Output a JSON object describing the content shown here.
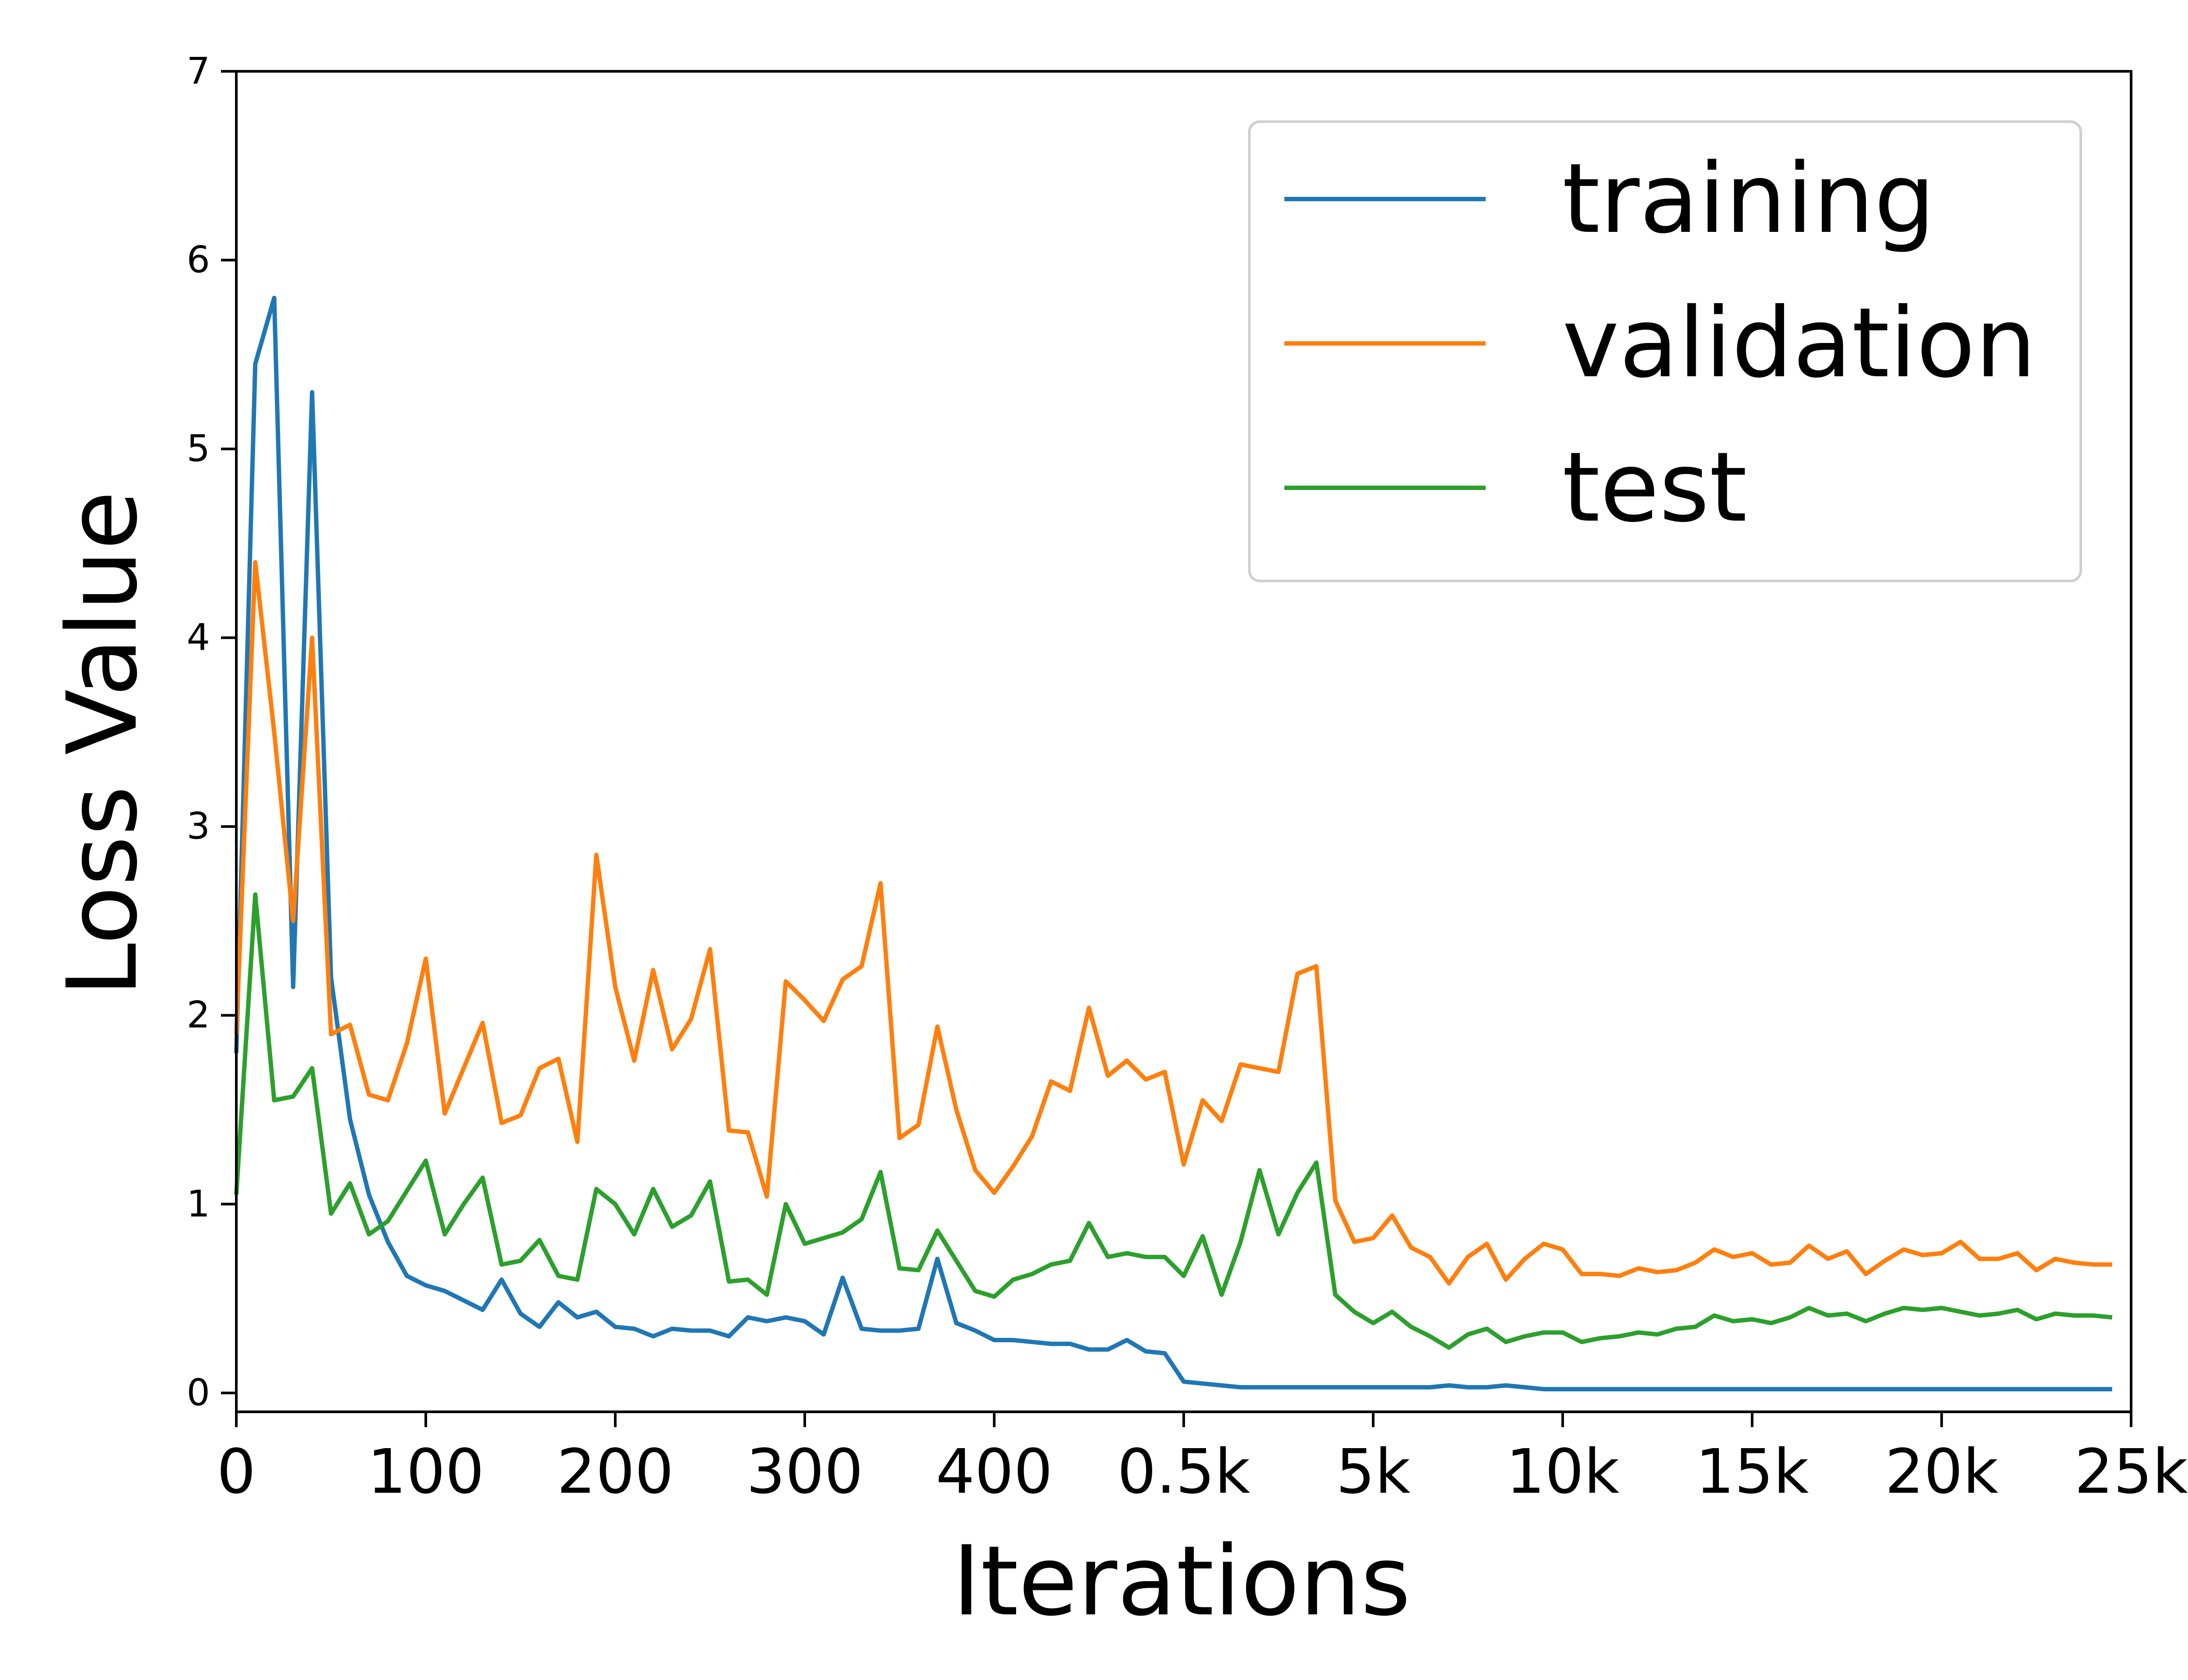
{
  "chart_data": {
    "type": "line",
    "xlabel": "Iterations",
    "ylabel": "Loss Value",
    "ylim": [
      -0.1,
      7
    ],
    "y_ticks": [
      "0",
      "1",
      "2",
      "3",
      "4",
      "5",
      "6",
      "7"
    ],
    "x_positions": [
      0,
      1,
      2,
      3,
      4,
      5,
      6,
      7,
      8,
      9,
      10,
      11,
      12,
      13,
      14,
      15,
      16,
      17,
      18,
      19,
      20,
      21,
      22,
      23,
      24,
      25,
      26,
      27,
      28,
      29,
      30,
      31,
      32,
      33,
      34,
      35,
      36,
      37,
      38,
      39,
      40,
      41,
      42,
      43,
      44,
      45,
      46,
      47,
      48,
      49,
      50,
      51,
      52,
      53,
      54,
      55,
      56,
      57,
      58,
      59,
      60,
      61,
      62,
      63,
      64,
      65,
      66,
      67,
      68,
      69,
      70,
      71,
      72,
      73,
      74,
      75,
      76,
      77,
      78,
      79,
      80,
      81,
      82,
      83,
      84,
      85,
      86,
      87,
      88,
      89,
      90,
      91,
      92,
      93,
      94,
      95,
      96,
      97,
      98,
      99
    ],
    "x_ticks": [
      {
        "pos": 0,
        "label": "0"
      },
      {
        "pos": 10,
        "label": "100"
      },
      {
        "pos": 20,
        "label": "200"
      },
      {
        "pos": 30,
        "label": "300"
      },
      {
        "pos": 40,
        "label": "400"
      },
      {
        "pos": 50,
        "label": "0.5k"
      },
      {
        "pos": 60,
        "label": "5k"
      },
      {
        "pos": 70,
        "label": "10k"
      },
      {
        "pos": 80,
        "label": "15k"
      },
      {
        "pos": 90,
        "label": "20k"
      },
      {
        "pos": 100,
        "label": "25k"
      }
    ],
    "legend_position": "top-right",
    "series": [
      {
        "name": "training",
        "color": "#1f77b4",
        "values": [
          1.8,
          5.45,
          5.8,
          2.15,
          5.3,
          2.2,
          1.45,
          1.05,
          0.8,
          0.62,
          0.57,
          0.54,
          0.49,
          0.44,
          0.6,
          0.42,
          0.35,
          0.48,
          0.4,
          0.43,
          0.35,
          0.34,
          0.3,
          0.34,
          0.33,
          0.33,
          0.3,
          0.4,
          0.38,
          0.4,
          0.38,
          0.31,
          0.61,
          0.34,
          0.33,
          0.33,
          0.34,
          0.71,
          0.37,
          0.33,
          0.28,
          0.28,
          0.27,
          0.26,
          0.26,
          0.23,
          0.23,
          0.28,
          0.22,
          0.21,
          0.06,
          0.05,
          0.04,
          0.03,
          0.03,
          0.03,
          0.03,
          0.03,
          0.03,
          0.03,
          0.03,
          0.03,
          0.03,
          0.03,
          0.04,
          0.03,
          0.03,
          0.04,
          0.03,
          0.02,
          0.02,
          0.02,
          0.02,
          0.02,
          0.02,
          0.02,
          0.02,
          0.02,
          0.02,
          0.02,
          0.02,
          0.02,
          0.02,
          0.02,
          0.02,
          0.02,
          0.02,
          0.02,
          0.02,
          0.02,
          0.02,
          0.02,
          0.02,
          0.02,
          0.02,
          0.02,
          0.02,
          0.02,
          0.02,
          0.02
        ]
      },
      {
        "name": "validation",
        "color": "#ff7f0e",
        "values": [
          1.9,
          4.4,
          3.5,
          2.5,
          4.0,
          1.9,
          1.95,
          1.58,
          1.55,
          1.85,
          2.3,
          1.48,
          1.72,
          1.96,
          1.43,
          1.47,
          1.72,
          1.77,
          1.33,
          2.85,
          2.15,
          1.76,
          2.24,
          1.82,
          1.98,
          2.35,
          1.39,
          1.38,
          1.04,
          2.18,
          2.08,
          1.97,
          2.19,
          2.26,
          2.7,
          1.35,
          1.42,
          1.94,
          1.5,
          1.18,
          1.06,
          1.2,
          1.36,
          1.65,
          1.6,
          2.04,
          1.68,
          1.76,
          1.66,
          1.7,
          1.21,
          1.55,
          1.44,
          1.74,
          1.72,
          1.7,
          2.22,
          2.26,
          1.02,
          0.8,
          0.82,
          0.94,
          0.77,
          0.72,
          0.58,
          0.72,
          0.79,
          0.6,
          0.71,
          0.79,
          0.76,
          0.63,
          0.63,
          0.62,
          0.66,
          0.64,
          0.65,
          0.69,
          0.76,
          0.72,
          0.74,
          0.68,
          0.69,
          0.78,
          0.71,
          0.75,
          0.63,
          0.7,
          0.76,
          0.73,
          0.74,
          0.8,
          0.71,
          0.71,
          0.74,
          0.65,
          0.71,
          0.69,
          0.68,
          0.68
        ]
      },
      {
        "name": "test",
        "color": "#2ca02c",
        "values": [
          1.05,
          2.64,
          1.55,
          1.57,
          1.72,
          0.95,
          1.11,
          0.84,
          0.91,
          1.07,
          1.23,
          0.84,
          1.0,
          1.14,
          0.68,
          0.7,
          0.81,
          0.62,
          0.6,
          1.08,
          1.0,
          0.84,
          1.08,
          0.88,
          0.94,
          1.12,
          0.59,
          0.6,
          0.52,
          1.0,
          0.79,
          0.82,
          0.85,
          0.92,
          1.17,
          0.66,
          0.65,
          0.86,
          0.7,
          0.54,
          0.51,
          0.6,
          0.63,
          0.68,
          0.7,
          0.9,
          0.72,
          0.74,
          0.72,
          0.72,
          0.62,
          0.83,
          0.52,
          0.8,
          1.18,
          0.84,
          1.06,
          1.22,
          0.52,
          0.43,
          0.37,
          0.43,
          0.35,
          0.3,
          0.24,
          0.31,
          0.34,
          0.27,
          0.3,
          0.32,
          0.32,
          0.27,
          0.29,
          0.3,
          0.32,
          0.31,
          0.34,
          0.35,
          0.41,
          0.38,
          0.39,
          0.37,
          0.4,
          0.45,
          0.41,
          0.42,
          0.38,
          0.42,
          0.45,
          0.44,
          0.45,
          0.43,
          0.41,
          0.42,
          0.44,
          0.39,
          0.42,
          0.41,
          0.41,
          0.4
        ]
      }
    ]
  }
}
